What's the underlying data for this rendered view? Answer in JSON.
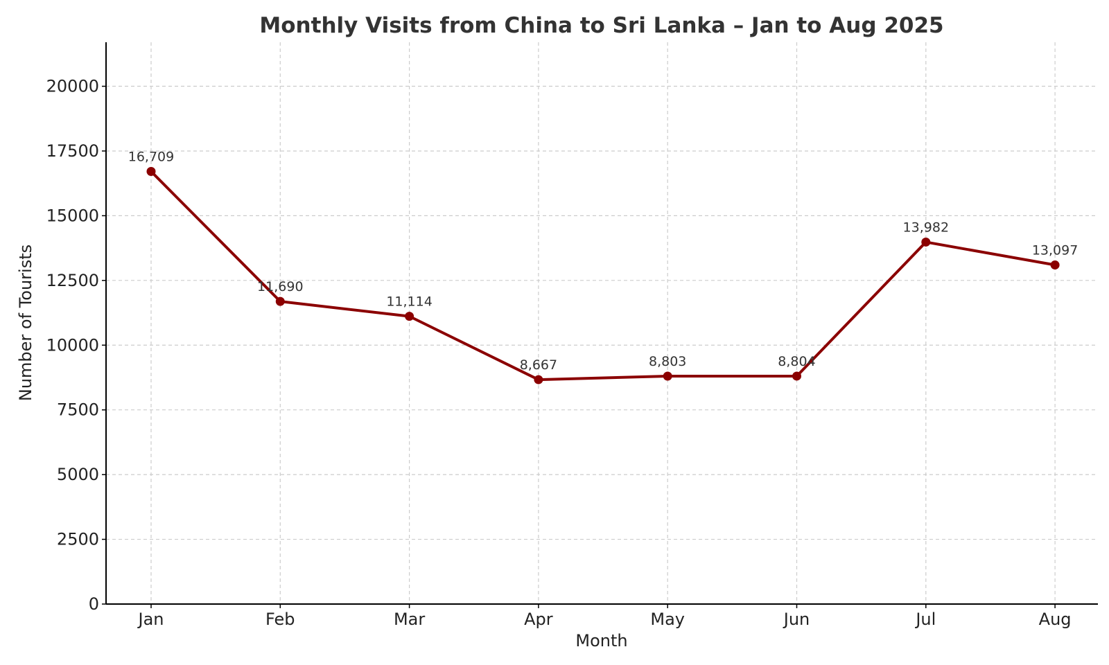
{
  "chart_data": {
    "type": "line",
    "title": "Monthly Visits from China to Sri Lanka – Jan to Aug 2025",
    "xlabel": "Month",
    "ylabel": "Number of Tourists",
    "categories": [
      "Jan",
      "Feb",
      "Mar",
      "Apr",
      "May",
      "Jun",
      "Jul",
      "Aug"
    ],
    "values": [
      16709,
      11690,
      11114,
      8667,
      8803,
      8804,
      13982,
      13097
    ],
    "data_labels": [
      "16,709",
      "11,690",
      "11,114",
      "8,667",
      "8,803",
      "8,804",
      "13,982",
      "13,097"
    ],
    "yticks": [
      0,
      2500,
      5000,
      7500,
      10000,
      12500,
      15000,
      17500,
      20000
    ],
    "ylim": [
      0,
      21700
    ],
    "grid": true,
    "line_color": "#8b0000"
  }
}
